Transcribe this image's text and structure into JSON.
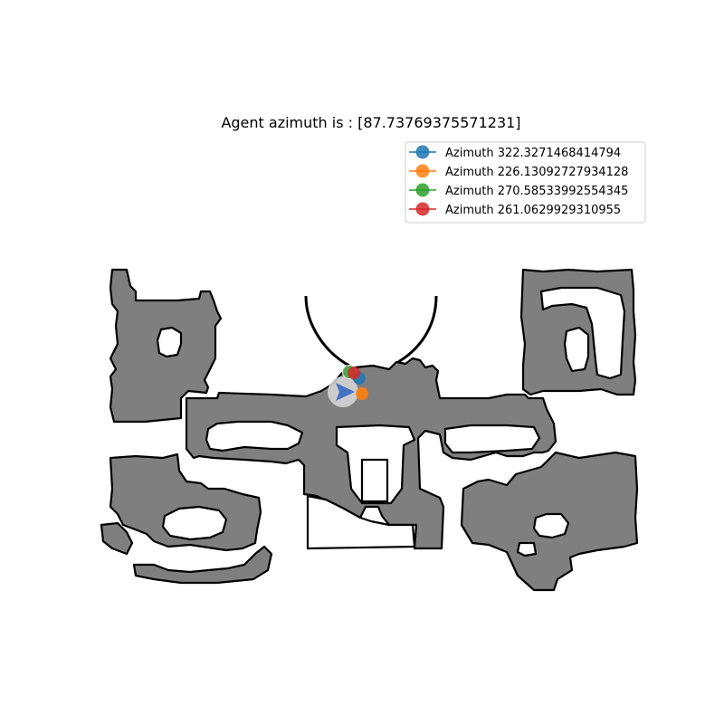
{
  "figure": {
    "title": "Agent azimuth is : [87.73769375571231]"
  },
  "legend": {
    "entries": [
      {
        "label": "Azimuth 322.3271468414794",
        "color": "#1f77b4"
      },
      {
        "label": "Azimuth 226.13092727934128",
        "color": "#ff7f0e"
      },
      {
        "label": "Azimuth 270.58533992554345",
        "color": "#2ca02c"
      },
      {
        "label": "Azimuth 261.0629929310955",
        "color": "#d62728"
      }
    ]
  },
  "map": {
    "free_space_color": "#7f7f7f",
    "wall_color": "#000000",
    "agent_marker_color": "#4472c4"
  }
}
